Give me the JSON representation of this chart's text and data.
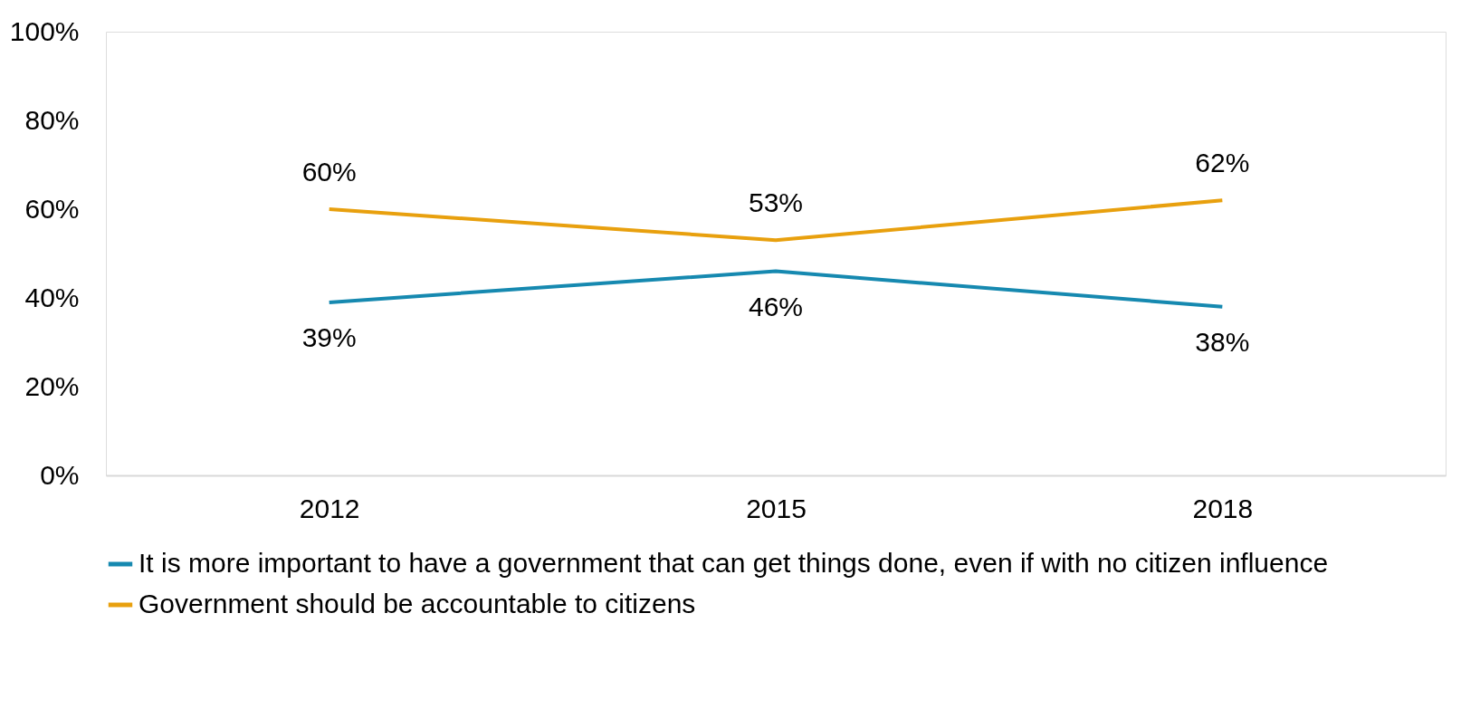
{
  "chart_data": {
    "type": "line",
    "categories": [
      "2012",
      "2015",
      "2018"
    ],
    "series": [
      {
        "name": "It is more important to have a government that can get things done, even if with no citizen influence",
        "color": "#1689b0",
        "values": [
          39,
          46,
          38
        ],
        "value_labels": [
          "39%",
          "46%",
          "38%"
        ]
      },
      {
        "name": "Government should be accountable to citizens",
        "color": "#e8a00e",
        "values": [
          60,
          53,
          62
        ],
        "value_labels": [
          "60%",
          "53%",
          "62%"
        ]
      }
    ],
    "ylim": [
      0,
      100
    ],
    "yticks": [
      {
        "value": 0,
        "label": "0%"
      },
      {
        "value": 20,
        "label": "20%"
      },
      {
        "value": 40,
        "label": "40%"
      },
      {
        "value": 60,
        "label": "60%"
      },
      {
        "value": 80,
        "label": "80%"
      },
      {
        "value": 100,
        "label": "100%"
      }
    ],
    "grid": false,
    "legend": "bottom",
    "marker": "none",
    "line_style": "solid"
  }
}
